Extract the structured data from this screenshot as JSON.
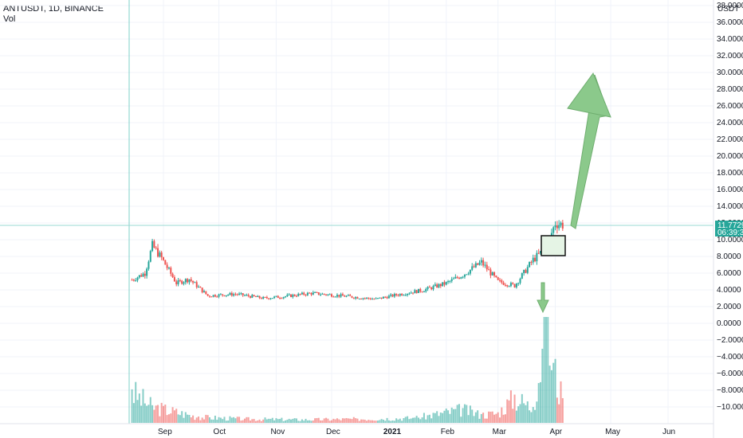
{
  "header": {
    "symbol": "ANTUSDT, 1D, BINANCE",
    "vol_label": "Vol"
  },
  "axis": {
    "currency": "USDT",
    "y_ticks": [
      "38.0000",
      "36.0000",
      "34.0000",
      "32.0000",
      "30.0000",
      "28.0000",
      "26.0000",
      "24.0000",
      "22.0000",
      "20.0000",
      "18.0000",
      "16.0000",
      "14.0000",
      "12.0000",
      "10.0000",
      "8.0000",
      "6.0000",
      "4.0000",
      "2.0000",
      "0.0000",
      "−2.0000",
      "−4.0000",
      "−6.0000",
      "−8.0000",
      "−10.0000"
    ],
    "x_ticks": [
      "Sep",
      "Oct",
      "Nov",
      "Dec",
      "2021",
      "Feb",
      "Mar",
      "Apr",
      "May",
      "Jun"
    ]
  },
  "price_tag": {
    "price": "11.7729",
    "countdown": "06:39:30"
  },
  "colors": {
    "up": "#26a69a",
    "down": "#ef5350",
    "arrow": "#8bc98b",
    "grid": "#f0f3fa",
    "tag": "#26a69a"
  },
  "chart_data": {
    "type": "candlestick",
    "ylim": [
      -11,
      38
    ],
    "price_series": {
      "x": [
        "2020-08-15",
        "2020-08-22",
        "2020-08-26",
        "2020-08-31",
        "2020-09-08",
        "2020-09-15",
        "2020-09-25",
        "2020-10-10",
        "2020-10-25",
        "2020-11-05",
        "2020-11-20",
        "2020-12-01",
        "2020-12-15",
        "2020-12-25",
        "2021-01-05",
        "2021-01-20",
        "2021-02-01",
        "2021-02-10",
        "2021-02-20",
        "2021-03-01",
        "2021-03-10",
        "2021-03-20",
        "2021-03-27",
        "2021-04-01",
        "2021-04-05"
      ],
      "close": [
        5.2,
        6.0,
        9.3,
        7.8,
        4.8,
        5.3,
        3.3,
        3.5,
        3.0,
        3.2,
        3.6,
        3.4,
        3.1,
        2.9,
        3.4,
        4.0,
        4.8,
        5.8,
        7.3,
        5.0,
        4.5,
        7.6,
        9.0,
        12.0,
        11.8
      ]
    },
    "volume": {
      "x": [
        "2020-08-15",
        "2020-08-26",
        "2020-09-20",
        "2020-10-15",
        "2020-11-15",
        "2020-12-15",
        "2021-01-15",
        "2021-02-10",
        "2021-02-20",
        "2021-03-01",
        "2021-03-10",
        "2021-03-20",
        "2021-03-27",
        "2021-03-31",
        "2021-04-05"
      ],
      "values": [
        9.5,
        5.0,
        1.8,
        1.2,
        1.0,
        1.2,
        1.5,
        4.2,
        2.5,
        3.0,
        8.0,
        4.5,
        30.0,
        17.0,
        7.0
      ]
    },
    "last_price": 11.7729
  }
}
